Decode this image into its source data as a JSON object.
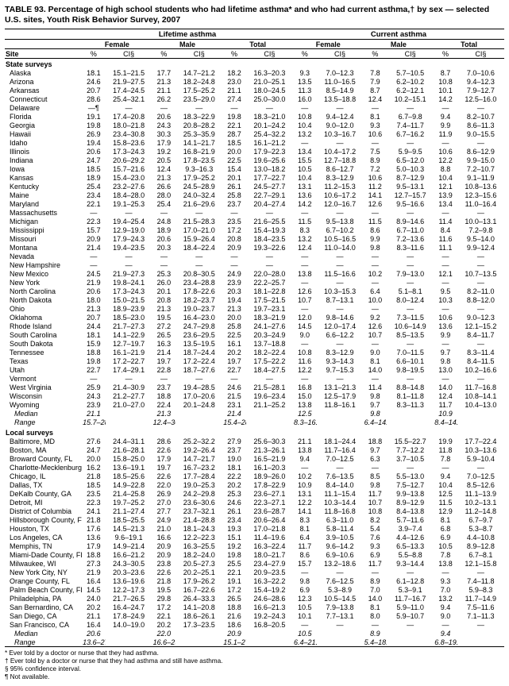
{
  "title": "TABLE 93. Percentage of high school students who had lifetime asthma* and who had current asthma,† by sex — selected U.S. sites, Youth Risk Behavior Survey, 2007",
  "spanners": {
    "lifetime": "Lifetime asthma",
    "current": "Current asthma"
  },
  "groups": {
    "female": "Female",
    "male": "Male",
    "total": "Total"
  },
  "cols": {
    "site": "Site",
    "pct": "%",
    "ci": "CI§"
  },
  "section1": "State surveys",
  "section2": "Local surveys",
  "median": "Median",
  "range": "Range",
  "footnotes": [
    "* Ever told by a doctor or nurse that they had asthma.",
    "† Ever told by a doctor or nurse that they had asthma and still have asthma.",
    "§ 95% confidence interval.",
    "¶ Not available."
  ],
  "dash": "—",
  "rows1": [
    {
      "n": "Alaska",
      "v": [
        "18.1",
        "15.1–21.5",
        "17.7",
        "14.7–21.2",
        "18.2",
        "16.3–20.3",
        "9.3",
        "7.0–12.3",
        "7.8",
        "5.7–10.5",
        "8.7",
        "7.0–10.6"
      ]
    },
    {
      "n": "Arizona",
      "v": [
        "24.6",
        "21.9–27.5",
        "21.3",
        "18.2–24.8",
        "23.0",
        "21.0–25.1",
        "13.5",
        "11.0–16.5",
        "7.9",
        "6.2–10.2",
        "10.8",
        "9.4–12.3"
      ]
    },
    {
      "n": "Arkansas",
      "v": [
        "20.7",
        "17.4–24.5",
        "21.1",
        "17.5–25.2",
        "21.1",
        "18.0–24.5",
        "11.3",
        "8.5–14.9",
        "8.7",
        "6.2–12.1",
        "10.1",
        "7.9–12.7"
      ]
    },
    {
      "n": "Connecticut",
      "v": [
        "28.6",
        "25.4–32.1",
        "26.2",
        "23.5–29.0",
        "27.4",
        "25.0–30.0",
        "16.0",
        "13.5–18.8",
        "12.4",
        "10.2–15.1",
        "14.2",
        "12.5–16.0"
      ]
    },
    {
      "n": "Delaware",
      "v": [
        "—¶",
        "—",
        "—",
        "—",
        "—",
        "—",
        "—",
        "—",
        "—",
        "—",
        "—",
        "—"
      ]
    },
    {
      "n": "Florida",
      "v": [
        "19.1",
        "17.4–20.8",
        "20.6",
        "18.3–22.9",
        "19.8",
        "18.3–21.0",
        "10.8",
        "9.4–12.4",
        "8.1",
        "6.7–9.8",
        "9.4",
        "8.2–10.7"
      ]
    },
    {
      "n": "Georgia",
      "v": [
        "19.8",
        "18.0–21.8",
        "24.3",
        "20.8–28.2",
        "22.1",
        "20.1–24.2",
        "10.4",
        "9.0–12.0",
        "9.3",
        "7.4–11.7",
        "9.9",
        "8.6–11.3"
      ]
    },
    {
      "n": "Hawaii",
      "v": [
        "26.9",
        "23.4–30.8",
        "30.3",
        "25.3–35.9",
        "28.7",
        "25.4–32.2",
        "13.2",
        "10.3–16.7",
        "10.6",
        "6.7–16.2",
        "11.9",
        "9.0–15.5"
      ]
    },
    {
      "n": "Idaho",
      "v": [
        "19.4",
        "15.8–23.6",
        "17.9",
        "14.1–21.7",
        "18.5",
        "16.1–21.2",
        "—",
        "—",
        "—",
        "—",
        "—",
        "—"
      ]
    },
    {
      "n": "Illinois",
      "v": [
        "20.6",
        "17.3–24.3",
        "19.2",
        "16.8–21.9",
        "20.0",
        "17.9–22.3",
        "13.4",
        "10.4–17.2",
        "7.5",
        "5.9–9.5",
        "10.6",
        "8.6–12.9"
      ]
    },
    {
      "n": "Indiana",
      "v": [
        "24.7",
        "20.6–29.2",
        "20.5",
        "17.8–23.5",
        "22.5",
        "19.6–25.6",
        "15.5",
        "12.7–18.8",
        "8.9",
        "6.5–12.0",
        "12.2",
        "9.9–15.0"
      ]
    },
    {
      "n": "Iowa",
      "v": [
        "18.5",
        "15.7–21.6",
        "12.4",
        "9.3–16.3",
        "15.4",
        "13.0–18.2",
        "10.5",
        "8.6–12.7",
        "7.2",
        "5.0–10.3",
        "8.8",
        "7.2–10.7"
      ]
    },
    {
      "n": "Kansas",
      "v": [
        "18.9",
        "15.4–23.0",
        "21.3",
        "17.9–25.2",
        "20.1",
        "17.7–22.7",
        "10.4",
        "8.3–12.9",
        "10.6",
        "8.7–12.9",
        "10.4",
        "9.1–11.9"
      ]
    },
    {
      "n": "Kentucky",
      "v": [
        "25.4",
        "23.2–27.6",
        "26.6",
        "24.5–28.9",
        "26.1",
        "24.5–27.7",
        "13.1",
        "11.2–15.3",
        "11.2",
        "9.5–13.1",
        "12.1",
        "10.8–13.6"
      ]
    },
    {
      "n": "Maine",
      "v": [
        "23.4",
        "18.4–28.0",
        "28.0",
        "24.0–32.4",
        "25.8",
        "22.7–29.1",
        "13.6",
        "10.6–17.2",
        "14.1",
        "12.7–15.7",
        "13.9",
        "12.3–15.6"
      ]
    },
    {
      "n": "Maryland",
      "v": [
        "22.1",
        "19.1–25.3",
        "25.4",
        "21.6–29.6",
        "23.7",
        "20.4–27.4",
        "14.2",
        "12.0–16.7",
        "12.6",
        "9.5–16.6",
        "13.4",
        "11.0–16.4"
      ]
    },
    {
      "n": "Massachusetts",
      "v": [
        "—",
        "—",
        "—",
        "—",
        "—",
        "—",
        "—",
        "—",
        "—",
        "—",
        "—",
        "—"
      ]
    },
    {
      "n": "Michigan",
      "v": [
        "22.3",
        "19.4–25.4",
        "24.8",
        "21.5–28.3",
        "23.5",
        "21.6–25.5",
        "11.5",
        "9.5–13.8",
        "11.5",
        "8.9–14.6",
        "11.4",
        "10.0–13.1"
      ]
    },
    {
      "n": "Mississippi",
      "v": [
        "15.7",
        "12.9–19.0",
        "18.9",
        "17.0–21.0",
        "17.2",
        "15.4–19.3",
        "8.3",
        "6.7–10.2",
        "8.6",
        "6.7–11.0",
        "8.4",
        "7.2–9.8"
      ]
    },
    {
      "n": "Missouri",
      "v": [
        "20.9",
        "17.9–24.3",
        "20.6",
        "15.9–26.4",
        "20.8",
        "18.4–23.5",
        "13.2",
        "10.5–16.5",
        "9.9",
        "7.2–13.6",
        "11.6",
        "9.5–14.0"
      ]
    },
    {
      "n": "Montana",
      "v": [
        "21.4",
        "19.4–23.5",
        "20.3",
        "18.4–22.4",
        "20.9",
        "19.3–22.6",
        "12.4",
        "11.0–14.0",
        "9.8",
        "8.3–11.6",
        "11.1",
        "9.9–12.4"
      ]
    },
    {
      "n": "Nevada",
      "v": [
        "—",
        "—",
        "—",
        "—",
        "—",
        "—",
        "—",
        "—",
        "—",
        "—",
        "—",
        "—"
      ]
    },
    {
      "n": "New Hampshire",
      "v": [
        "—",
        "—",
        "—",
        "—",
        "—",
        "—",
        "—",
        "—",
        "—",
        "—",
        "—",
        "—"
      ]
    },
    {
      "n": "New Mexico",
      "v": [
        "24.5",
        "21.9–27.3",
        "25.3",
        "20.8–30.5",
        "24.9",
        "22.0–28.0",
        "13.8",
        "11.5–16.6",
        "10.2",
        "7.9–13.0",
        "12.1",
        "10.7–13.5"
      ]
    },
    {
      "n": "New York",
      "v": [
        "21.9",
        "19.8–24.1",
        "26.0",
        "23.4–28.8",
        "23.9",
        "22.2–25.7",
        "—",
        "—",
        "—",
        "—",
        "—",
        "—"
      ]
    },
    {
      "n": "North Carolina",
      "v": [
        "20.6",
        "17.3–24.3",
        "20.1",
        "17.8–22.6",
        "20.3",
        "18.1–22.8",
        "12.6",
        "10.3–15.3",
        "6.4",
        "5.1–8.1",
        "9.5",
        "8.2–11.0"
      ]
    },
    {
      "n": "North Dakota",
      "v": [
        "18.0",
        "15.0–21.5",
        "20.8",
        "18.2–23.7",
        "19.4",
        "17.5–21.5",
        "10.7",
        "8.7–13.1",
        "10.0",
        "8.0–12.4",
        "10.3",
        "8.8–12.0"
      ]
    },
    {
      "n": "Ohio",
      "v": [
        "21.3",
        "18.9–23.9",
        "21.3",
        "19.0–23.7",
        "21.3",
        "19.7–23.1",
        "—",
        "—",
        "—",
        "—",
        "—",
        "—"
      ]
    },
    {
      "n": "Oklahoma",
      "v": [
        "20.7",
        "18.5–23.0",
        "19.5",
        "16.4–23.0",
        "20.0",
        "18.3–21.9",
        "12.0",
        "9.8–14.6",
        "9.2",
        "7.3–11.5",
        "10.6",
        "9.0–12.3"
      ]
    },
    {
      "n": "Rhode Island",
      "v": [
        "24.4",
        "21.7–27.3",
        "27.2",
        "24.7–29.8",
        "25.8",
        "24.1–27.6",
        "14.5",
        "12.0–17.4",
        "12.6",
        "10.6–14.9",
        "13.6",
        "12.1–15.2"
      ]
    },
    {
      "n": "South Carolina",
      "v": [
        "18.1",
        "14.1–22.9",
        "26.5",
        "23.6–29.5",
        "22.5",
        "20.3–24.9",
        "9.0",
        "6.6–12.2",
        "10.7",
        "8.5–13.5",
        "9.9",
        "8.4–11.7"
      ]
    },
    {
      "n": "South Dakota",
      "v": [
        "15.9",
        "12.7–19.7",
        "16.3",
        "13.5–19.5",
        "16.1",
        "13.7–18.8",
        "—",
        "—",
        "—",
        "—",
        "—",
        "—"
      ]
    },
    {
      "n": "Tennessee",
      "v": [
        "18.8",
        "16.1–21.9",
        "21.4",
        "18.7–24.4",
        "20.2",
        "18.2–22.4",
        "10.8",
        "8.3–12.9",
        "9.0",
        "7.0–11.5",
        "9.7",
        "8.3–11.4"
      ]
    },
    {
      "n": "Texas",
      "v": [
        "19.8",
        "17.2–22.7",
        "19.7",
        "17.2–22.4",
        "19.7",
        "17.5–22.2",
        "11.6",
        "9.3–14.3",
        "8.1",
        "6.6–10.1",
        "9.8",
        "8.4–11.5"
      ]
    },
    {
      "n": "Utah",
      "v": [
        "22.7",
        "17.4–29.1",
        "22.8",
        "18.7–27.6",
        "22.7",
        "18.4–27.5",
        "12.2",
        "9.7–15.3",
        "14.0",
        "9.8–19.5",
        "13.0",
        "10.2–16.6"
      ]
    },
    {
      "n": "Vermont",
      "v": [
        "—",
        "—",
        "—",
        "—",
        "—",
        "—",
        "—",
        "—",
        "—",
        "—",
        "—",
        "—"
      ]
    },
    {
      "n": "West Virginia",
      "v": [
        "25.9",
        "21.4–30.9",
        "23.7",
        "19.4–28.5",
        "24.6",
        "21.5–28.1",
        "16.8",
        "13.1–21.3",
        "11.4",
        "8.8–14.8",
        "14.0",
        "11.7–16.8"
      ]
    },
    {
      "n": "Wisconsin",
      "v": [
        "24.3",
        "21.2–27.7",
        "18.8",
        "17.0–20.6",
        "21.5",
        "19.6–23.4",
        "15.0",
        "12.5–17.9",
        "9.8",
        "8.1–11.8",
        "12.4",
        "10.8–14.1"
      ]
    },
    {
      "n": "Wyoming",
      "v": [
        "23.9",
        "21.0–27.0",
        "22.4",
        "20.1–24.8",
        "23.1",
        "21.1–25.2",
        "13.8",
        "11.8–16.1",
        "9.7",
        "8.3–11.3",
        "11.7",
        "10.4–13.0"
      ]
    }
  ],
  "median1": [
    "21.1",
    "",
    "21.3",
    "",
    "21.4",
    "",
    "12.5",
    "",
    "9.8",
    "",
    "10.9",
    ""
  ],
  "range1": [
    "15.7–28.6",
    "",
    "12.4–30.3",
    "",
    "15.4–28.7",
    "",
    "8.3–16.8",
    "",
    "6.4–14.1",
    "",
    "8.4–14.2",
    ""
  ],
  "rows2": [
    {
      "n": "Baltimore, MD",
      "v": [
        "27.6",
        "24.4–31.1",
        "28.6",
        "25.2–32.2",
        "27.9",
        "25.6–30.3",
        "21.1",
        "18.1–24.4",
        "18.8",
        "15.5–22.7",
        "19.9",
        "17.7–22.4"
      ]
    },
    {
      "n": "Boston, MA",
      "v": [
        "24.7",
        "21.6–28.1",
        "22.6",
        "19.2–26.4",
        "23.7",
        "21.3–26.1",
        "13.8",
        "11.7–16.4",
        "9.7",
        "7.7–12.2",
        "11.8",
        "10.3–13.6"
      ]
    },
    {
      "n": "Broward County, FL",
      "v": [
        "20.0",
        "15.8–25.0",
        "17.9",
        "14.7–21.7",
        "19.0",
        "16.5–21.9",
        "9.4",
        "7.0–12.5",
        "6.3",
        "3.7–10.5",
        "7.8",
        "5.9–10.4"
      ]
    },
    {
      "n": "Charlotte-Mecklenburg, NC",
      "v": [
        "16.2",
        "13.6–19.1",
        "19.7",
        "16.7–23.2",
        "18.1",
        "16.1–20.3",
        "—",
        "—",
        "—",
        "—",
        "—",
        "—"
      ]
    },
    {
      "n": "Chicago, IL",
      "v": [
        "21.8",
        "18.5–25.6",
        "22.6",
        "17.7–28.4",
        "22.2",
        "18.9–26.0",
        "10.2",
        "7.6–13.5",
        "8.5",
        "5.5–13.0",
        "9.4",
        "7.0–12.5"
      ]
    },
    {
      "n": "Dallas, TX",
      "v": [
        "18.5",
        "14.9–22.8",
        "22.0",
        "19.0–25.3",
        "20.2",
        "17.8–22.9",
        "10.9",
        "8.4–14.0",
        "9.8",
        "7.5–12.7",
        "10.4",
        "8.5–12.6"
      ]
    },
    {
      "n": "DeKalb County, GA",
      "v": [
        "23.5",
        "21.4–25.8",
        "26.9",
        "24.2–29.8",
        "25.3",
        "23.6–27.1",
        "13.1",
        "11.1–15.4",
        "11.7",
        "9.9–13.8",
        "12.5",
        "11.1–13.9"
      ]
    },
    {
      "n": "Detroit, MI",
      "v": [
        "22.3",
        "19.7–25.2",
        "27.0",
        "23.6–30.6",
        "24.6",
        "22.3–27.1",
        "12.2",
        "10.3–14.4",
        "10.7",
        "8.9–12.9",
        "11.5",
        "10.2–13.1"
      ]
    },
    {
      "n": "District of Columbia",
      "v": [
        "24.1",
        "21.1–27.4",
        "27.7",
        "23.7–32.1",
        "26.1",
        "23.6–28.7",
        "14.1",
        "11.8–16.8",
        "10.8",
        "8.4–13.8",
        "12.9",
        "11.2–14.8"
      ]
    },
    {
      "n": "Hillsborough County, FL",
      "v": [
        "21.8",
        "18.5–25.5",
        "24.9",
        "21.4–28.8",
        "23.4",
        "20.6–26.4",
        "8.3",
        "6.3–11.0",
        "8.2",
        "5.7–11.6",
        "8.1",
        "6.7–9.7"
      ]
    },
    {
      "n": "Houston, TX",
      "v": [
        "17.6",
        "14.5–21.3",
        "21.0",
        "18.1–24.3",
        "19.3",
        "17.0–21.8",
        "8.1",
        "5.8–11.4",
        "5.4",
        "3.9–7.4",
        "6.8",
        "5.3–8.7"
      ]
    },
    {
      "n": "Los Angeles, CA",
      "v": [
        "13.6",
        "9.6–19.1",
        "16.6",
        "12.2–22.3",
        "15.1",
        "11.4–19.6",
        "6.4",
        "3.9–10.5",
        "7.6",
        "4.4–12.6",
        "6.9",
        "4.4–10.8"
      ]
    },
    {
      "n": "Memphis, TN",
      "v": [
        "17.9",
        "14.9–21.4",
        "20.9",
        "16.3–25.5",
        "19.2",
        "16.3–22.4",
        "11.7",
        "9.6–14.2",
        "9.3",
        "6.5–13.3",
        "10.5",
        "8.9–12.8"
      ]
    },
    {
      "n": "Miami-Dade County, FL",
      "v": [
        "18.8",
        "16.6–21.2",
        "20.9",
        "18.2–24.0",
        "19.8",
        "18.0–21.7",
        "8.6",
        "6.9–10.6",
        "6.9",
        "5.5–8.8",
        "7.8",
        "6.7–8.1"
      ]
    },
    {
      "n": "Milwaukee, WI",
      "v": [
        "27.3",
        "24.3–30.5",
        "23.8",
        "20.5–27.3",
        "25.5",
        "23.4–27.9",
        "15.7",
        "13.2–18.6",
        "11.7",
        "9.3–14.4",
        "13.8",
        "12.1–15.8"
      ]
    },
    {
      "n": "New York City, NY",
      "v": [
        "21.9",
        "20.3–23.6",
        "22.6",
        "20.2–25.1",
        "22.1",
        "20.9–23.5",
        "—",
        "—",
        "—",
        "—",
        "—",
        "—"
      ]
    },
    {
      "n": "Orange County, FL",
      "v": [
        "16.4",
        "13.6–19.6",
        "21.8",
        "17.9–26.2",
        "19.1",
        "16.3–22.2",
        "9.8",
        "7.6–12.5",
        "8.9",
        "6.1–12.8",
        "9.3",
        "7.4–11.8"
      ]
    },
    {
      "n": "Palm Beach County, FL",
      "v": [
        "14.5",
        "12.2–17.3",
        "19.5",
        "16.7–22.6",
        "17.2",
        "15.4–19.2",
        "6.9",
        "5.3–8.9",
        "7.0",
        "5.3–9.1",
        "7.0",
        "5.9–8.3"
      ]
    },
    {
      "n": "Philadelphia, PA",
      "v": [
        "24.0",
        "21.7–26.5",
        "29.8",
        "26.4–33.3",
        "26.5",
        "24.6–28.6",
        "12.3",
        "10.5–14.5",
        "14.0",
        "11.7–16.7",
        "13.2",
        "11.7–14.9"
      ]
    },
    {
      "n": "San Bernardino, CA",
      "v": [
        "20.2",
        "16.4–24.7",
        "17.2",
        "14.1–20.8",
        "18.8",
        "16.6–21.3",
        "10.5",
        "7.9–13.8",
        "8.1",
        "5.9–11.0",
        "9.4",
        "7.5–11.6"
      ]
    },
    {
      "n": "San Diego, CA",
      "v": [
        "21.1",
        "17.8–24.9",
        "22.1",
        "18.6–26.1",
        "21.6",
        "19.2–24.3",
        "10.1",
        "7.7–13.1",
        "8.0",
        "5.9–10.7",
        "9.0",
        "7.1–11.3"
      ]
    },
    {
      "n": "San Francisco, CA",
      "v": [
        "16.4",
        "14.0–19.0",
        "20.2",
        "17.3–23.5",
        "18.6",
        "16.8–20.5",
        "—",
        "—",
        "—",
        "—",
        "—",
        "—"
      ]
    }
  ],
  "median2": [
    "20.6",
    "",
    "22.0",
    "",
    "20.9",
    "",
    "10.5",
    "",
    "8.9",
    "",
    "9.4",
    ""
  ],
  "range2": [
    "13.6–27.6",
    "",
    "16.6–29.8",
    "",
    "15.1–27.9",
    "",
    "6.4–21.1",
    "",
    "5.4–18.8",
    "",
    "6.8–19.9",
    ""
  ]
}
